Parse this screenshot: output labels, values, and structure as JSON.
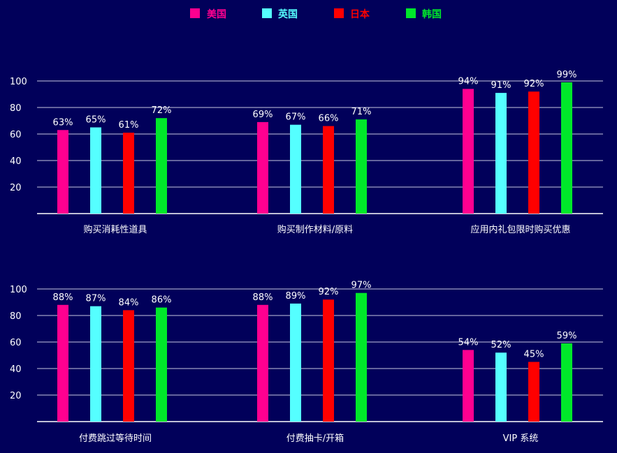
{
  "chart_data": {
    "type": "bar",
    "legend_position": "top",
    "series": [
      {
        "name": "美国",
        "color": "#ff0090"
      },
      {
        "name": "英国",
        "color": "#55ffff"
      },
      {
        "name": "日本",
        "color": "#ff0000"
      },
      {
        "name": "韩国",
        "color": "#00e82a"
      }
    ],
    "panels": [
      {
        "categories": [
          "购买消耗性道具",
          "购买制作材料/原料",
          "应用内礼包限时购买优惠"
        ],
        "values": [
          [
            63,
            69,
            94
          ],
          [
            65,
            67,
            91
          ],
          [
            61,
            66,
            92
          ],
          [
            72,
            71,
            99
          ]
        ],
        "ylim": [
          0,
          100
        ],
        "yticks": [
          20,
          40,
          60,
          80,
          100
        ],
        "grid": true
      },
      {
        "categories": [
          "付费跳过等待时间",
          "付费抽卡/开箱",
          "VIP 系统"
        ],
        "values": [
          [
            88,
            88,
            54
          ],
          [
            87,
            89,
            52
          ],
          [
            84,
            92,
            45
          ],
          [
            86,
            97,
            59
          ]
        ],
        "ylim": [
          0,
          100
        ],
        "yticks": [
          20,
          40,
          60,
          80,
          100
        ],
        "grid": true
      }
    ],
    "value_suffix": "%"
  }
}
